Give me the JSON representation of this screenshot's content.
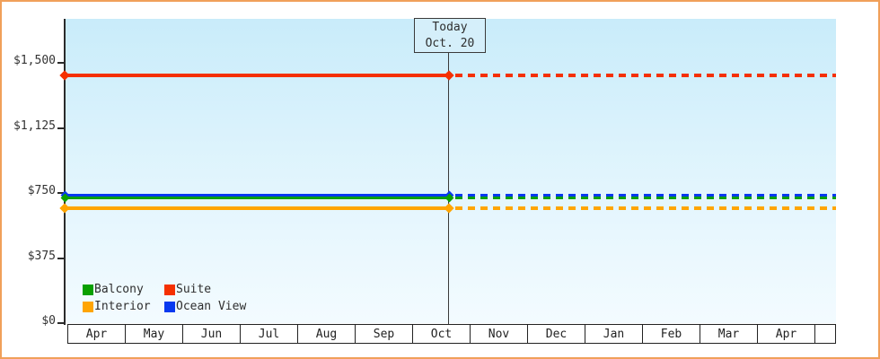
{
  "window": {
    "frame_border_color": "#f0a05a",
    "background_color": "#ffffff"
  },
  "chart_data": {
    "type": "line",
    "description": "Cruise cabin price history: flat price lines per cabin category, solid before today, dotted projection after today",
    "today": {
      "line1": "Today",
      "line2": "Oct. 20"
    },
    "ylim": [
      0,
      1500
    ],
    "y_ticks": [
      {
        "label": "$1,500",
        "value": 1500
      },
      {
        "label": "$1,125",
        "value": 1125
      },
      {
        "label": "$750",
        "value": 750
      },
      {
        "label": "$375",
        "value": 375
      },
      {
        "label": "$0",
        "value": 0
      }
    ],
    "x_months": [
      "Apr",
      "May",
      "Jun",
      "Jul",
      "Aug",
      "Sep",
      "Oct",
      "Nov",
      "Dec",
      "Jan",
      "Feb",
      "Mar",
      "Apr"
    ],
    "today_month": "Oct",
    "today_day_fraction": 0.645,
    "series": [
      {
        "name": "Suite",
        "color": "#f53000",
        "value_usd": 1430
      },
      {
        "name": "Ocean View",
        "color": "#0839f0",
        "value_usd": 735
      },
      {
        "name": "Balcony",
        "color": "#0ba000",
        "value_usd": 720
      },
      {
        "name": "Interior",
        "color": "#ffa502",
        "value_usd": 660
      }
    ],
    "legend": [
      {
        "label": "Balcony",
        "color": "#0ba000"
      },
      {
        "label": "Suite",
        "color": "#f53000"
      },
      {
        "label": "Interior",
        "color": "#ffa502"
      },
      {
        "label": "Ocean View",
        "color": "#0839f0"
      }
    ],
    "legend_position": "bottom-left-inside-plot",
    "grid": false
  }
}
